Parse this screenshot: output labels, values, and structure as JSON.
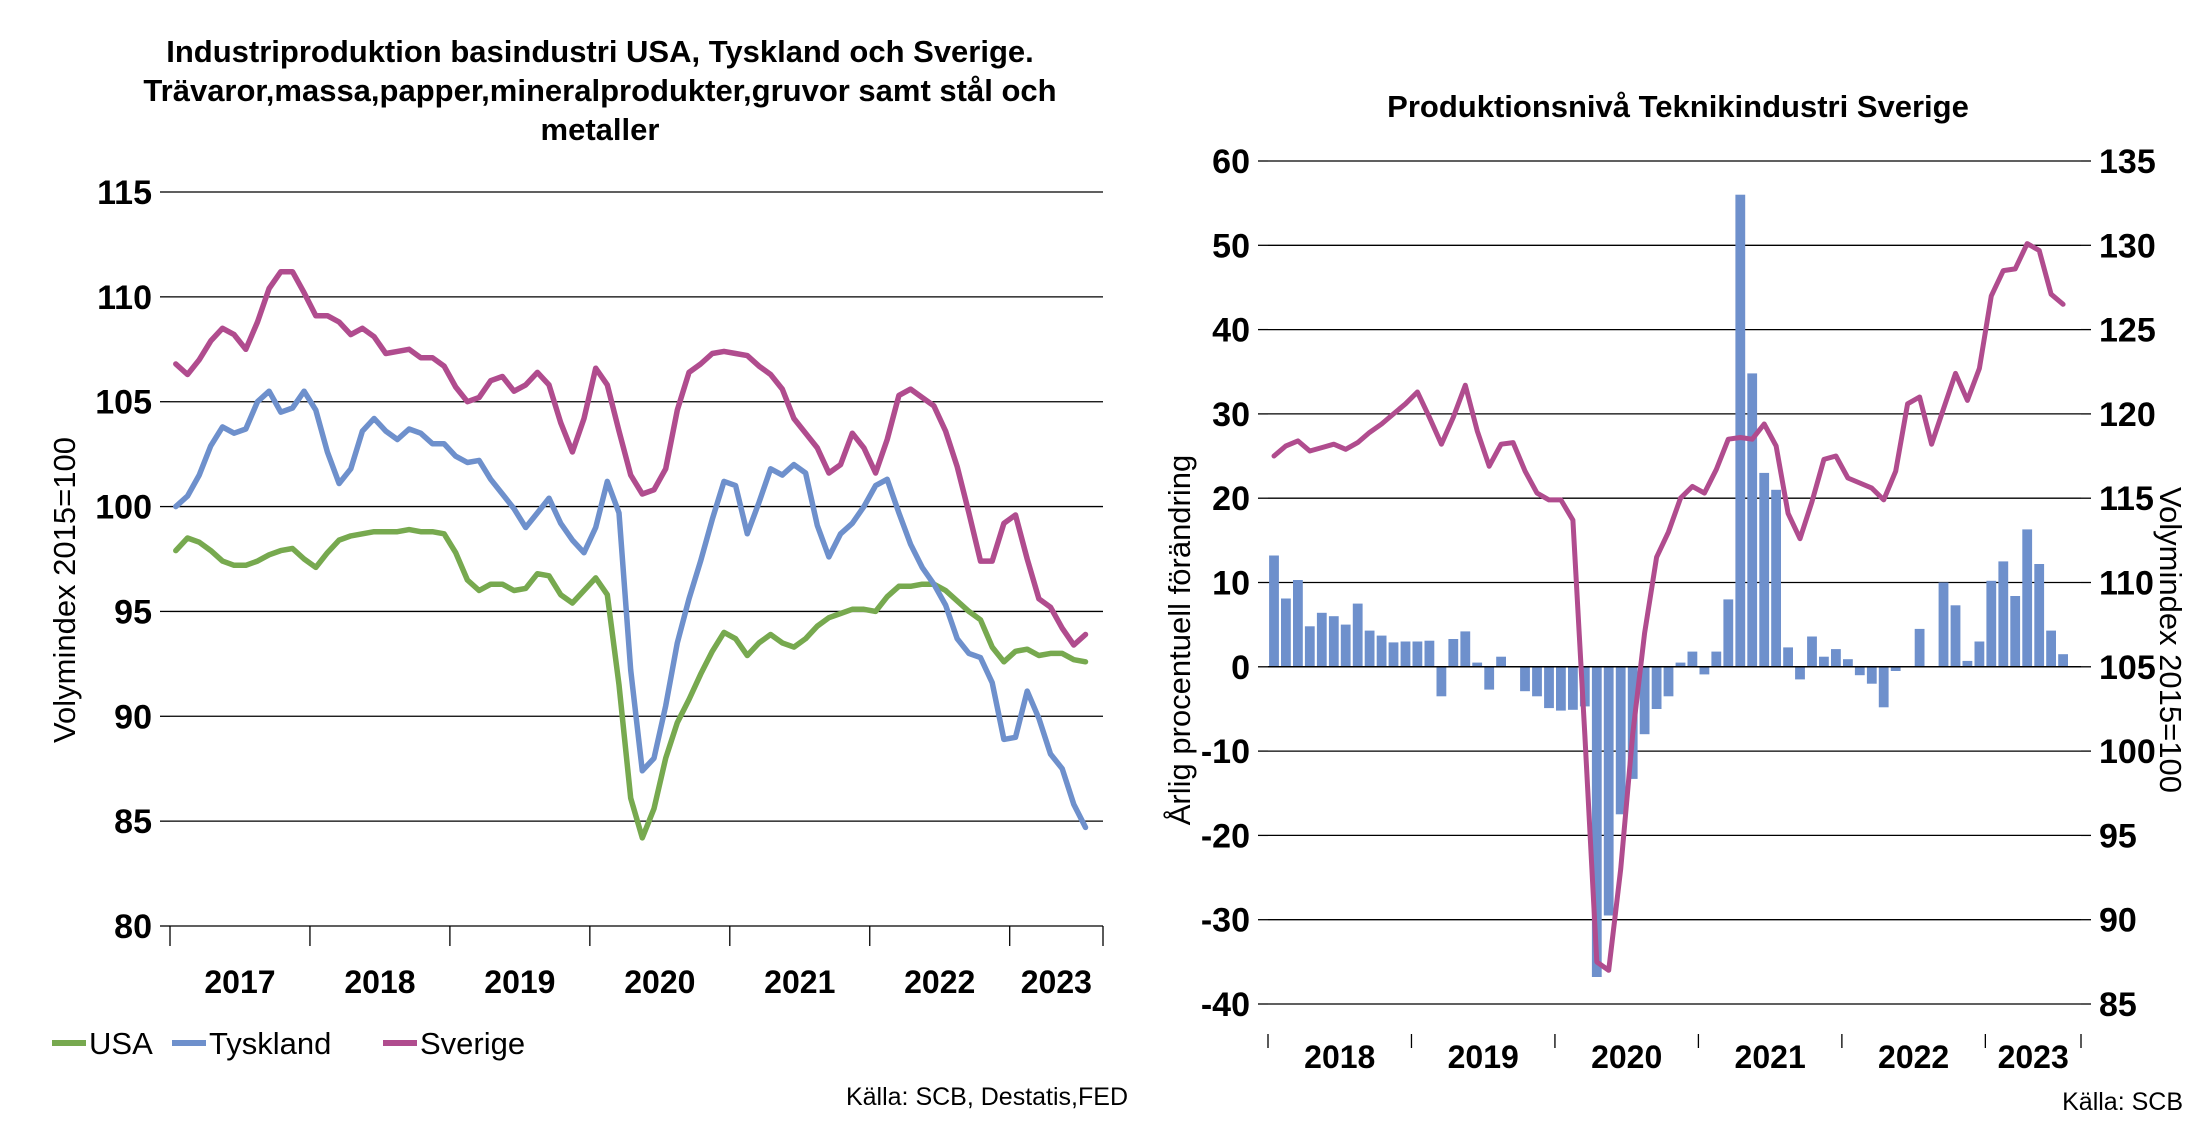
{
  "colors": {
    "usa": "#77a94f",
    "tyskland": "#6e90cc",
    "sverige": "#b04c8e",
    "bars": "#6e90cc",
    "grid": "#000000"
  },
  "left_source": "Källa: SCB, Destatis,FED",
  "right_source": "Källa: SCB",
  "chart_data": [
    {
      "type": "line",
      "title": [
        "Industriproduktion basindustri USA, Tyskland och Sverige.",
        "Trävaror,massa,papper,mineralprodukter,gruvor samt stål och",
        "metaller"
      ],
      "ylabel": "Volymindex 2015=100",
      "ylim": [
        80,
        115
      ],
      "yticks": [
        "80",
        "85",
        "90",
        "95",
        "100",
        "105",
        "110",
        "115"
      ],
      "start": "2017-01",
      "end": "2023-08",
      "year_labels": [
        "2017",
        "2018",
        "2019",
        "2020",
        "2021",
        "2022",
        "2023"
      ],
      "legend_position": "bottom-left",
      "grid": true,
      "series": [
        {
          "key": "usa",
          "name": "USA",
          "values": [
            97.9,
            98.5,
            98.3,
            97.9,
            97.4,
            97.2,
            97.2,
            97.4,
            97.7,
            97.9,
            98.0,
            97.5,
            97.1,
            97.8,
            98.4,
            98.6,
            98.7,
            98.8,
            98.8,
            98.8,
            98.9,
            98.8,
            98.8,
            98.7,
            97.8,
            96.5,
            96.0,
            96.3,
            96.3,
            96.0,
            96.1,
            96.8,
            96.7,
            95.8,
            95.4,
            96.0,
            96.6,
            95.8,
            91.5,
            86.1,
            84.2,
            85.6,
            88.0,
            89.7,
            90.8,
            92.0,
            93.1,
            94.0,
            93.7,
            92.9,
            93.5,
            93.9,
            93.5,
            93.3,
            93.7,
            94.3,
            94.7,
            94.9,
            95.1,
            95.1,
            95.0,
            95.7,
            96.2,
            96.2,
            96.3,
            96.3,
            96.0,
            95.5,
            95.0,
            94.6,
            93.3,
            92.6,
            93.1,
            93.2,
            92.9,
            93.0,
            93.0,
            92.7,
            92.6
          ]
        },
        {
          "key": "tyskland",
          "name": "Tyskland",
          "values": [
            100.0,
            100.5,
            101.5,
            102.9,
            103.8,
            103.5,
            103.7,
            105.0,
            105.5,
            104.5,
            104.7,
            105.5,
            104.6,
            102.6,
            101.1,
            101.8,
            103.6,
            104.2,
            103.6,
            103.2,
            103.7,
            103.5,
            103.0,
            103.0,
            102.4,
            102.1,
            102.2,
            101.3,
            100.6,
            99.9,
            99.0,
            99.7,
            100.4,
            99.2,
            98.4,
            97.8,
            99.0,
            101.2,
            99.7,
            92.2,
            87.4,
            88.0,
            90.5,
            93.5,
            95.6,
            97.4,
            99.4,
            101.2,
            101.0,
            98.7,
            100.2,
            101.8,
            101.5,
            102.0,
            101.6,
            99.1,
            97.6,
            98.7,
            99.2,
            100.0,
            101.0,
            101.3,
            99.7,
            98.2,
            97.1,
            96.3,
            95.3,
            93.7,
            93.0,
            92.8,
            91.6,
            88.9,
            89.0,
            91.2,
            89.9,
            88.2,
            87.5,
            85.8,
            84.7
          ]
        },
        {
          "key": "sverige",
          "name": "Sverige",
          "values": [
            106.8,
            106.3,
            107.0,
            107.9,
            108.5,
            108.2,
            107.5,
            108.8,
            110.4,
            111.2,
            111.2,
            110.2,
            109.1,
            109.1,
            108.8,
            108.2,
            108.5,
            108.1,
            107.3,
            107.4,
            107.5,
            107.1,
            107.1,
            106.7,
            105.7,
            105.0,
            105.2,
            106.0,
            106.2,
            105.5,
            105.8,
            106.4,
            105.8,
            104.0,
            102.6,
            104.2,
            106.6,
            105.8,
            103.6,
            101.5,
            100.6,
            100.8,
            101.8,
            104.6,
            106.4,
            106.8,
            107.3,
            107.4,
            107.3,
            107.2,
            106.7,
            106.3,
            105.6,
            104.2,
            103.5,
            102.8,
            101.6,
            102.0,
            103.5,
            102.8,
            101.6,
            103.2,
            105.3,
            105.6,
            105.2,
            104.8,
            103.6,
            101.9,
            99.7,
            97.4,
            97.4,
            99.2,
            99.6,
            97.5,
            95.6,
            95.2,
            94.2,
            93.4,
            93.9
          ]
        }
      ]
    },
    {
      "type": "bar+line",
      "title": "Produktionsnivå Teknikindustri Sverige",
      "ylabel_left": "Årlig procentuell förändring",
      "ylabel_right": "Volymindex 2015=100",
      "ylim_left": [
        -40,
        60
      ],
      "ylim_right": [
        85,
        135
      ],
      "yticks_left": [
        "-40",
        "-30",
        "-20",
        "-10",
        "0",
        "10",
        "20",
        "30",
        "40",
        "50",
        "60"
      ],
      "yticks_right": [
        "85",
        "90",
        "95",
        "100",
        "105",
        "110",
        "115",
        "120",
        "125",
        "130",
        "135"
      ],
      "start": "2018-01",
      "end": "2023-08",
      "year_labels": [
        "2018",
        "2019",
        "2020",
        "2021",
        "2022",
        "2023"
      ],
      "grid": true,
      "bar_series": {
        "name": "Årlig procentuell förändring",
        "values": [
          13.2,
          8.1,
          10.3,
          4.8,
          6.4,
          6.0,
          5.0,
          7.5,
          4.3,
          3.7,
          2.9,
          3.0,
          3.0,
          3.1,
          -3.5,
          3.3,
          4.2,
          0.5,
          -2.7,
          1.2,
          0.0,
          -2.9,
          -3.5,
          -4.9,
          -5.2,
          -5.1,
          -4.7,
          -36.8,
          -29.5,
          -17.5,
          -13.3,
          -8.0,
          -5.0,
          -3.5,
          0.5,
          1.8,
          -0.9,
          1.8,
          8.0,
          56.0,
          34.8,
          23.0,
          21.0,
          2.3,
          -1.5,
          3.6,
          1.2,
          2.1,
          0.9,
          -1.0,
          -2.0,
          -4.8,
          -0.5,
          0.0,
          4.5,
          0.0,
          10.0,
          7.3,
          0.7,
          3.0,
          10.2,
          12.5,
          8.4,
          16.3,
          12.2,
          4.3,
          1.5
        ]
      },
      "line_series": {
        "name": "Volymindex 2015=100",
        "values": [
          117.5,
          118.1,
          118.4,
          117.8,
          118.0,
          118.2,
          117.9,
          118.3,
          118.9,
          119.4,
          120.0,
          120.6,
          121.3,
          119.8,
          118.2,
          119.8,
          121.7,
          119.0,
          116.9,
          118.2,
          118.3,
          116.6,
          115.3,
          114.9,
          114.9,
          113.7,
          101.0,
          87.5,
          87.0,
          93.0,
          101.0,
          107.0,
          111.5,
          113.0,
          115.0,
          115.7,
          115.3,
          116.7,
          118.5,
          118.6,
          118.5,
          119.4,
          118.1,
          114.1,
          112.6,
          114.8,
          117.3,
          117.5,
          116.2,
          115.9,
          115.6,
          114.9,
          116.6,
          120.6,
          121.0,
          118.2,
          120.3,
          122.4,
          120.8,
          122.7,
          127.0,
          128.5,
          128.6,
          130.1,
          129.7,
          127.1,
          126.5
        ]
      }
    }
  ],
  "legend": [
    {
      "key": "usa",
      "label": "USA"
    },
    {
      "key": "tyskland",
      "label": "Tyskland"
    },
    {
      "key": "sverige",
      "label": "Sverige"
    }
  ]
}
